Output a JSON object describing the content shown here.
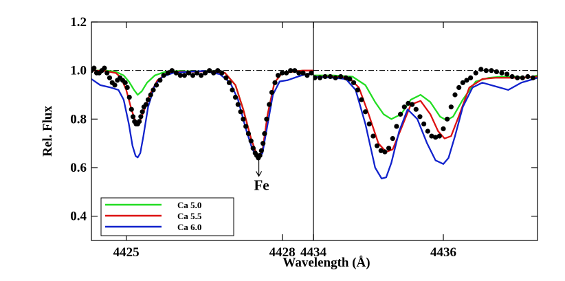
{
  "chart_data": {
    "type": "line",
    "ylabel": "Rel. Flux",
    "xlabel": "Wavelength (Å)",
    "ylim": [
      0.3,
      1.2
    ],
    "yticks": [
      "0.4",
      "0.6",
      "0.8",
      "1.0",
      "1.2"
    ],
    "reference_line": 1.0,
    "legend": {
      "placement": "lower-left",
      "entries": [
        {
          "label": "Ca 5.0",
          "color": "#22dd22"
        },
        {
          "label": "Ca 5.5",
          "color": "#dd1111"
        },
        {
          "label": "Ca 6.0",
          "color": "#1122cc"
        }
      ]
    },
    "annotations": [
      {
        "text": "Fe",
        "x": 4427.55,
        "panel": 0
      }
    ],
    "panels": [
      {
        "xlim": [
          4424.33,
          4428.6
        ],
        "xticks": [
          {
            "value": 4425,
            "label": "4425"
          },
          {
            "value": 4428,
            "label": "4428"
          },
          {
            "value": 4428.6,
            "label": "4434"
          }
        ],
        "series": [
          {
            "name": "Ca 5.0",
            "color": "#22dd22",
            "x": [
              4424.33,
              4424.6,
              4424.8,
              4424.95,
              4425.05,
              4425.15,
              4425.22,
              4425.3,
              4425.4,
              4425.55,
              4425.75,
              4426.0,
              4426.3,
              4426.6,
              4426.9,
              4427.1,
              4427.25,
              4427.4,
              4427.5,
              4427.55,
              4427.62,
              4427.72,
              4427.85,
              4428.0,
              4428.2,
              4428.4,
              4428.6
            ],
            "y": [
              1.0,
              1.0,
              0.995,
              0.98,
              0.955,
              0.92,
              0.9,
              0.915,
              0.95,
              0.98,
              0.995,
              0.998,
              0.996,
              0.998,
              0.99,
              0.94,
              0.84,
              0.72,
              0.66,
              0.64,
              0.67,
              0.82,
              0.95,
              0.99,
              0.995,
              1.0,
              1.0
            ]
          },
          {
            "name": "Ca 5.5",
            "color": "#dd1111",
            "x": [
              4424.33,
              4424.6,
              4424.8,
              4424.9,
              4425.0,
              4425.1,
              4425.17,
              4425.22,
              4425.28,
              4425.35,
              4425.45,
              4425.6,
              4425.8,
              4426.0,
              4426.3,
              4426.6,
              4426.9,
              4427.1,
              4427.25,
              4427.4,
              4427.5,
              4427.55,
              4427.62,
              4427.72,
              4427.85,
              4428.0,
              4428.2,
              4428.4,
              4428.6
            ],
            "y": [
              1.0,
              0.998,
              0.99,
              0.97,
              0.92,
              0.84,
              0.795,
              0.785,
              0.8,
              0.84,
              0.9,
              0.96,
              0.99,
              0.995,
              0.995,
              0.997,
              0.99,
              0.94,
              0.84,
              0.72,
              0.66,
              0.64,
              0.67,
              0.82,
              0.95,
              0.99,
              0.995,
              1.0,
              1.0
            ]
          },
          {
            "name": "Ca 6.0",
            "color": "#1122cc",
            "x": [
              4424.33,
              4424.5,
              4424.7,
              4424.85,
              4424.95,
              4425.05,
              4425.12,
              4425.18,
              4425.22,
              4425.27,
              4425.33,
              4425.42,
              4425.55,
              4425.7,
              4425.9,
              4426.2,
              4426.5,
              4426.8,
              4427.0,
              4427.15,
              4427.3,
              4427.42,
              4427.5,
              4427.55,
              4427.62,
              4427.72,
              4427.82,
              4427.95,
              4428.1,
              4428.3,
              4428.45,
              4428.6
            ],
            "y": [
              0.965,
              0.94,
              0.93,
              0.92,
              0.88,
              0.78,
              0.69,
              0.648,
              0.642,
              0.66,
              0.73,
              0.85,
              0.94,
              0.975,
              0.99,
              0.995,
              0.998,
              0.985,
              0.95,
              0.88,
              0.76,
              0.68,
              0.645,
              0.64,
              0.66,
              0.78,
              0.9,
              0.955,
              0.96,
              0.975,
              0.985,
              0.99
            ]
          },
          {
            "name": "",
            "color": "#000000",
            "marker": "dot",
            "x": [
              4424.33,
              4424.38,
              4424.43,
              4424.48,
              4424.53,
              4424.58,
              4424.63,
              4424.68,
              4424.73,
              4424.78,
              4424.83,
              4424.88,
              4424.93,
              4424.98,
              4425.02,
              4425.06,
              4425.1,
              4425.13,
              4425.16,
              4425.19,
              4425.22,
              4425.25,
              4425.28,
              4425.31,
              4425.34,
              4425.38,
              4425.42,
              4425.47,
              4425.52,
              4425.58,
              4425.65,
              4425.72,
              4425.8,
              4425.88,
              4425.96,
              4426.04,
              4426.12,
              4426.2,
              4426.28,
              4426.36,
              4426.44,
              4426.52,
              4426.6,
              4426.68,
              4426.76,
              4426.84,
              4426.92,
              4426.98,
              4427.04,
              4427.1,
              4427.15,
              4427.2,
              4427.25,
              4427.3,
              4427.35,
              4427.4,
              4427.44,
              4427.48,
              4427.51,
              4427.54,
              4427.57,
              4427.6,
              4427.63,
              4427.66,
              4427.7,
              4427.75,
              4427.8,
              4427.86,
              4427.92,
              4428.0,
              4428.08,
              4428.16,
              4428.24,
              4428.32,
              4428.4,
              4428.48,
              4428.56
            ],
            "y": [
              1.0,
              1.01,
              0.99,
              0.99,
              1.0,
              1.01,
              0.99,
              0.97,
              0.95,
              0.94,
              0.96,
              0.97,
              0.96,
              0.95,
              0.93,
              0.89,
              0.84,
              0.81,
              0.79,
              0.78,
              0.78,
              0.79,
              0.81,
              0.83,
              0.85,
              0.86,
              0.88,
              0.9,
              0.92,
              0.94,
              0.96,
              0.98,
              0.99,
              1.0,
              0.99,
              0.98,
              0.98,
              0.99,
              0.98,
              0.99,
              0.98,
              0.99,
              1.0,
              0.99,
              1.0,
              0.99,
              0.97,
              0.95,
              0.92,
              0.89,
              0.86,
              0.83,
              0.8,
              0.77,
              0.74,
              0.71,
              0.68,
              0.66,
              0.65,
              0.64,
              0.65,
              0.67,
              0.7,
              0.74,
              0.8,
              0.86,
              0.91,
              0.95,
              0.98,
              0.99,
              0.99,
              1.0,
              1.0,
              0.99,
              0.99,
              0.98,
              0.99
            ]
          }
        ]
      },
      {
        "xlim": [
          4434.0,
          4437.45
        ],
        "xticks": [
          {
            "value": 4434,
            "label": ""
          },
          {
            "value": 4436,
            "label": "4436"
          }
        ],
        "series": [
          {
            "name": "Ca 5.0",
            "color": "#22dd22",
            "x": [
              4434.0,
              4434.3,
              4434.6,
              4434.8,
              4434.95,
              4435.08,
              4435.2,
              4435.35,
              4435.5,
              4435.65,
              4435.8,
              4435.95,
              4436.05,
              4436.15,
              4436.3,
              4436.5,
              4436.7,
              4436.9,
              4437.1,
              4437.3,
              4437.45
            ],
            "y": [
              0.98,
              0.98,
              0.975,
              0.94,
              0.87,
              0.82,
              0.8,
              0.82,
              0.88,
              0.9,
              0.87,
              0.81,
              0.795,
              0.81,
              0.88,
              0.955,
              0.97,
              0.975,
              0.975,
              0.97,
              0.98
            ]
          },
          {
            "name": "Ca 5.5",
            "color": "#dd1111",
            "x": [
              4434.0,
              4434.3,
              4434.55,
              4434.7,
              4434.85,
              4435.0,
              4435.12,
              4435.22,
              4435.35,
              4435.5,
              4435.65,
              4435.8,
              4435.92,
              4436.02,
              4436.12,
              4436.25,
              4436.4,
              4436.6,
              4436.8,
              4437.0,
              4437.2,
              4437.45
            ],
            "y": [
              0.975,
              0.975,
              0.97,
              0.93,
              0.82,
              0.7,
              0.665,
              0.675,
              0.76,
              0.86,
              0.875,
              0.82,
              0.75,
              0.72,
              0.73,
              0.82,
              0.93,
              0.965,
              0.97,
              0.97,
              0.97,
              0.975
            ]
          },
          {
            "name": "Ca 6.0",
            "color": "#1122cc",
            "x": [
              4434.0,
              4434.3,
              4434.5,
              4434.65,
              4434.8,
              4434.95,
              4435.05,
              4435.12,
              4435.2,
              4435.32,
              4435.45,
              4435.6,
              4435.75,
              4435.88,
              4436.0,
              4436.08,
              4436.18,
              4436.3,
              4436.45,
              4436.6,
              4436.8,
              4437.0,
              4437.2,
              4437.45
            ],
            "y": [
              0.975,
              0.97,
              0.965,
              0.92,
              0.78,
              0.6,
              0.555,
              0.56,
              0.62,
              0.75,
              0.84,
              0.8,
              0.7,
              0.63,
              0.615,
              0.64,
              0.73,
              0.85,
              0.93,
              0.95,
              0.935,
              0.92,
              0.95,
              0.97
            ]
          },
          {
            "name": "",
            "color": "#000000",
            "marker": "dot",
            "x": [
              4434.02,
              4434.1,
              4434.18,
              4434.26,
              4434.34,
              4434.42,
              4434.5,
              4434.56,
              4434.62,
              4434.68,
              4434.74,
              4434.8,
              4434.86,
              4434.92,
              4434.98,
              4435.04,
              4435.1,
              4435.16,
              4435.22,
              4435.28,
              4435.34,
              4435.4,
              4435.46,
              4435.52,
              4435.58,
              4435.64,
              4435.7,
              4435.76,
              4435.82,
              4435.88,
              4435.94,
              4436.0,
              4436.06,
              4436.12,
              4436.18,
              4436.24,
              4436.3,
              4436.36,
              4436.42,
              4436.5,
              4436.58,
              4436.66,
              4436.74,
              4436.82,
              4436.9,
              4436.98,
              4437.06,
              4437.14,
              4437.22,
              4437.3,
              4437.38
            ],
            "y": [
              0.97,
              0.97,
              0.975,
              0.975,
              0.97,
              0.975,
              0.97,
              0.965,
              0.95,
              0.92,
              0.88,
              0.83,
              0.78,
              0.73,
              0.69,
              0.67,
              0.665,
              0.68,
              0.72,
              0.77,
              0.82,
              0.85,
              0.865,
              0.86,
              0.84,
              0.81,
              0.78,
              0.75,
              0.73,
              0.725,
              0.73,
              0.76,
              0.8,
              0.85,
              0.9,
              0.93,
              0.95,
              0.96,
              0.97,
              0.99,
              1.005,
              1.0,
              1.0,
              0.995,
              0.99,
              0.985,
              0.975,
              0.97,
              0.97,
              0.975,
              0.97
            ]
          }
        ]
      }
    ]
  }
}
